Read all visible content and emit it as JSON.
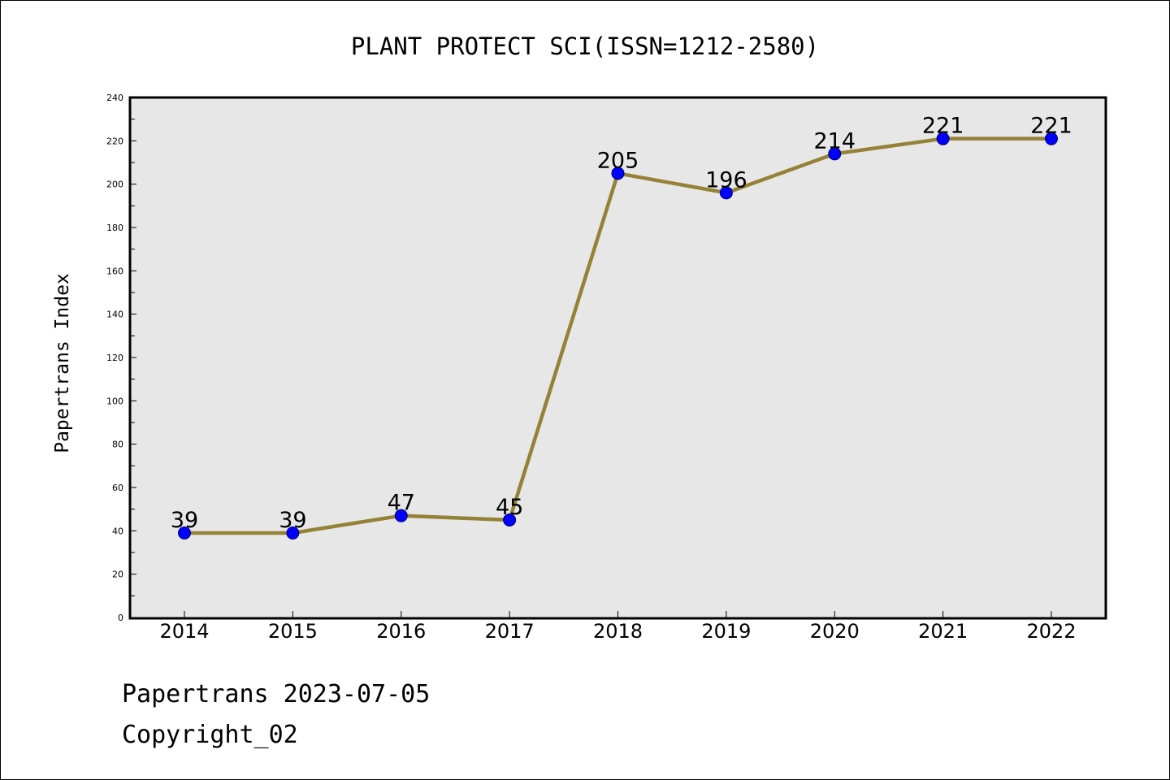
{
  "chart_data": {
    "type": "line",
    "title": "PLANT PROTECT SCI(ISSN=1212-2580)",
    "xlabel": "",
    "ylabel": "Papertrans Index",
    "categories": [
      "2014",
      "2015",
      "2016",
      "2017",
      "2018",
      "2019",
      "2020",
      "2021",
      "2022"
    ],
    "series": [
      {
        "values": [
          39,
          39,
          47,
          45,
          205,
          196,
          214,
          221,
          221
        ]
      }
    ],
    "data_labels": [
      "39",
      "39",
      "47",
      "45",
      "205",
      "196",
      "214",
      "221",
      "221"
    ],
    "ylim": [
      0,
      240
    ],
    "y_ticks": [
      "0",
      "20",
      "40",
      "60",
      "80",
      "100",
      "120",
      "140",
      "160",
      "180",
      "200",
      "220",
      "240"
    ],
    "grid": false,
    "legend": "none",
    "colors": {
      "line": "#948236",
      "marker": "#0000ff",
      "plot_background": "#e7e7e7"
    }
  },
  "footer": {
    "line1": "Papertrans 2023-07-05",
    "line2": "Copyright_02"
  }
}
